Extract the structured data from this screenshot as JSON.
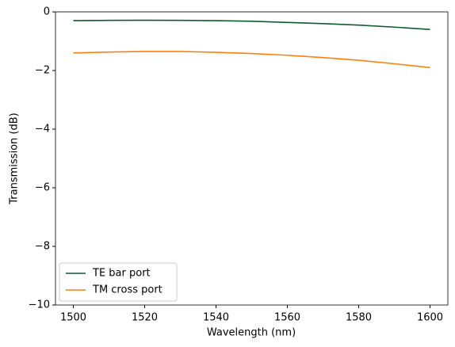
{
  "chart_data": {
    "type": "line",
    "xlabel": "Wavelength (nm)",
    "ylabel": "Transmission (dB)",
    "x": [
      1500,
      1510,
      1520,
      1530,
      1540,
      1550,
      1560,
      1570,
      1580,
      1590,
      1600
    ],
    "series": [
      {
        "name": "TE bar port",
        "color": "#0f5c2e",
        "values": [
          -0.3,
          -0.29,
          -0.285,
          -0.29,
          -0.3,
          -0.32,
          -0.36,
          -0.4,
          -0.45,
          -0.52,
          -0.6
        ]
      },
      {
        "name": "TM cross port",
        "color": "#ff7f0e",
        "values": [
          -1.4,
          -1.37,
          -1.35,
          -1.35,
          -1.38,
          -1.42,
          -1.48,
          -1.56,
          -1.65,
          -1.77,
          -1.9
        ]
      }
    ],
    "xlim": [
      1495,
      1605
    ],
    "ylim": [
      -10,
      0
    ],
    "xticks": [
      1500,
      1520,
      1540,
      1560,
      1580,
      1600
    ],
    "yticks": [
      {
        "value": -10,
        "label": "−10"
      },
      {
        "value": -8,
        "label": "−8"
      },
      {
        "value": -6,
        "label": "−6"
      },
      {
        "value": -4,
        "label": "−4"
      },
      {
        "value": -2,
        "label": "−2"
      },
      0
    ],
    "legend": "lower left",
    "grid": false
  }
}
